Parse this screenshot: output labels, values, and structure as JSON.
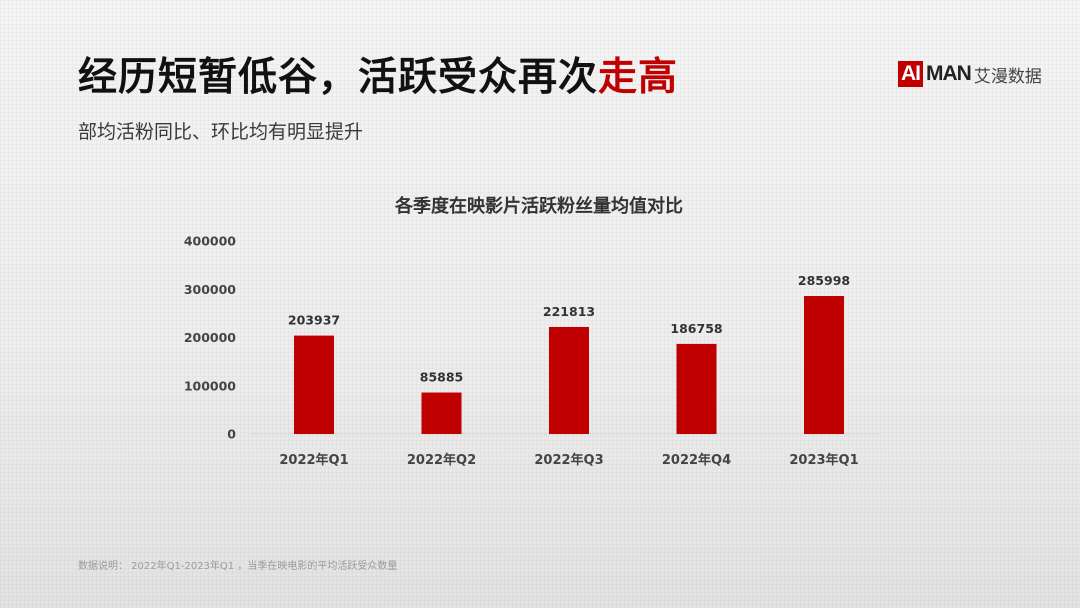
{
  "header": {
    "title_main": "经历短暂低谷，活跃受众再次",
    "title_accent": "走高",
    "subtitle": "部均活粉同比、环比均有明显提升"
  },
  "logo": {
    "mark": "AI",
    "name": "MAN",
    "cn": "艾漫数据"
  },
  "footnote": "数据说明：  2022年Q1-2023年Q1 ，当季在映电影的平均活跃受众数量",
  "colors": {
    "accent": "#c00000",
    "bar": "#c00000",
    "title_text": "#111111"
  },
  "chart_data": {
    "type": "bar",
    "title": "各季度在映影片活跃粉丝量均值对比",
    "categories": [
      "2022年Q1",
      "2022年Q2",
      "2022年Q3",
      "2022年Q4",
      "2023年Q1"
    ],
    "values": [
      203937,
      85885,
      221813,
      186758,
      285998
    ],
    "data_labels": [
      "203937",
      "85885",
      "221813",
      "186758",
      "285998"
    ],
    "y_ticks": [
      0,
      100000,
      200000,
      300000,
      400000
    ],
    "y_tick_labels": [
      "0",
      "100000",
      "200000",
      "300000",
      "400000"
    ],
    "ylim": [
      0,
      400000
    ],
    "xlabel": "",
    "ylabel": "",
    "grid": false,
    "legend": "none"
  }
}
